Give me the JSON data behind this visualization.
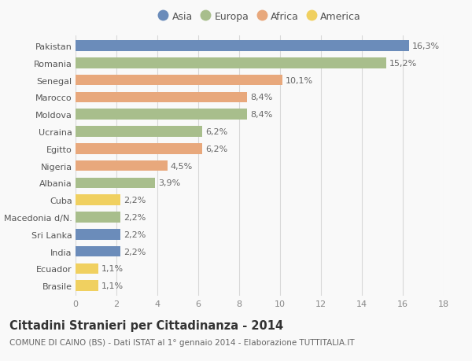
{
  "countries": [
    "Pakistan",
    "Romania",
    "Senegal",
    "Marocco",
    "Moldova",
    "Ucraina",
    "Egitto",
    "Nigeria",
    "Albania",
    "Cuba",
    "Macedonia d/N.",
    "Sri Lanka",
    "India",
    "Ecuador",
    "Brasile"
  ],
  "values": [
    16.3,
    15.2,
    10.1,
    8.4,
    8.4,
    6.2,
    6.2,
    4.5,
    3.9,
    2.2,
    2.2,
    2.2,
    2.2,
    1.1,
    1.1
  ],
  "labels": [
    "16,3%",
    "15,2%",
    "10,1%",
    "8,4%",
    "8,4%",
    "6,2%",
    "6,2%",
    "4,5%",
    "3,9%",
    "2,2%",
    "2,2%",
    "2,2%",
    "2,2%",
    "1,1%",
    "1,1%"
  ],
  "continents": [
    "Asia",
    "Europa",
    "Africa",
    "Africa",
    "Europa",
    "Europa",
    "Africa",
    "Africa",
    "Europa",
    "America",
    "Europa",
    "Asia",
    "Asia",
    "America",
    "America"
  ],
  "continent_colors": {
    "Asia": "#6b8cba",
    "Europa": "#a8be8c",
    "Africa": "#e8a87c",
    "America": "#f0d060"
  },
  "legend_order": [
    "Asia",
    "Europa",
    "Africa",
    "America"
  ],
  "xlim": [
    0,
    18
  ],
  "xticks": [
    0,
    2,
    4,
    6,
    8,
    10,
    12,
    14,
    16,
    18
  ],
  "title": "Cittadini Stranieri per Cittadinanza - 2014",
  "subtitle": "COMUNE DI CAINO (BS) - Dati ISTAT al 1° gennaio 2014 - Elaborazione TUTTITALIA.IT",
  "background_color": "#f9f9f9",
  "grid_color": "#d8d8d8",
  "bar_height": 0.62,
  "label_fontsize": 8.0,
  "ytick_fontsize": 8.0,
  "xtick_fontsize": 8.0,
  "title_fontsize": 10.5,
  "subtitle_fontsize": 7.5,
  "legend_fontsize": 9.0
}
